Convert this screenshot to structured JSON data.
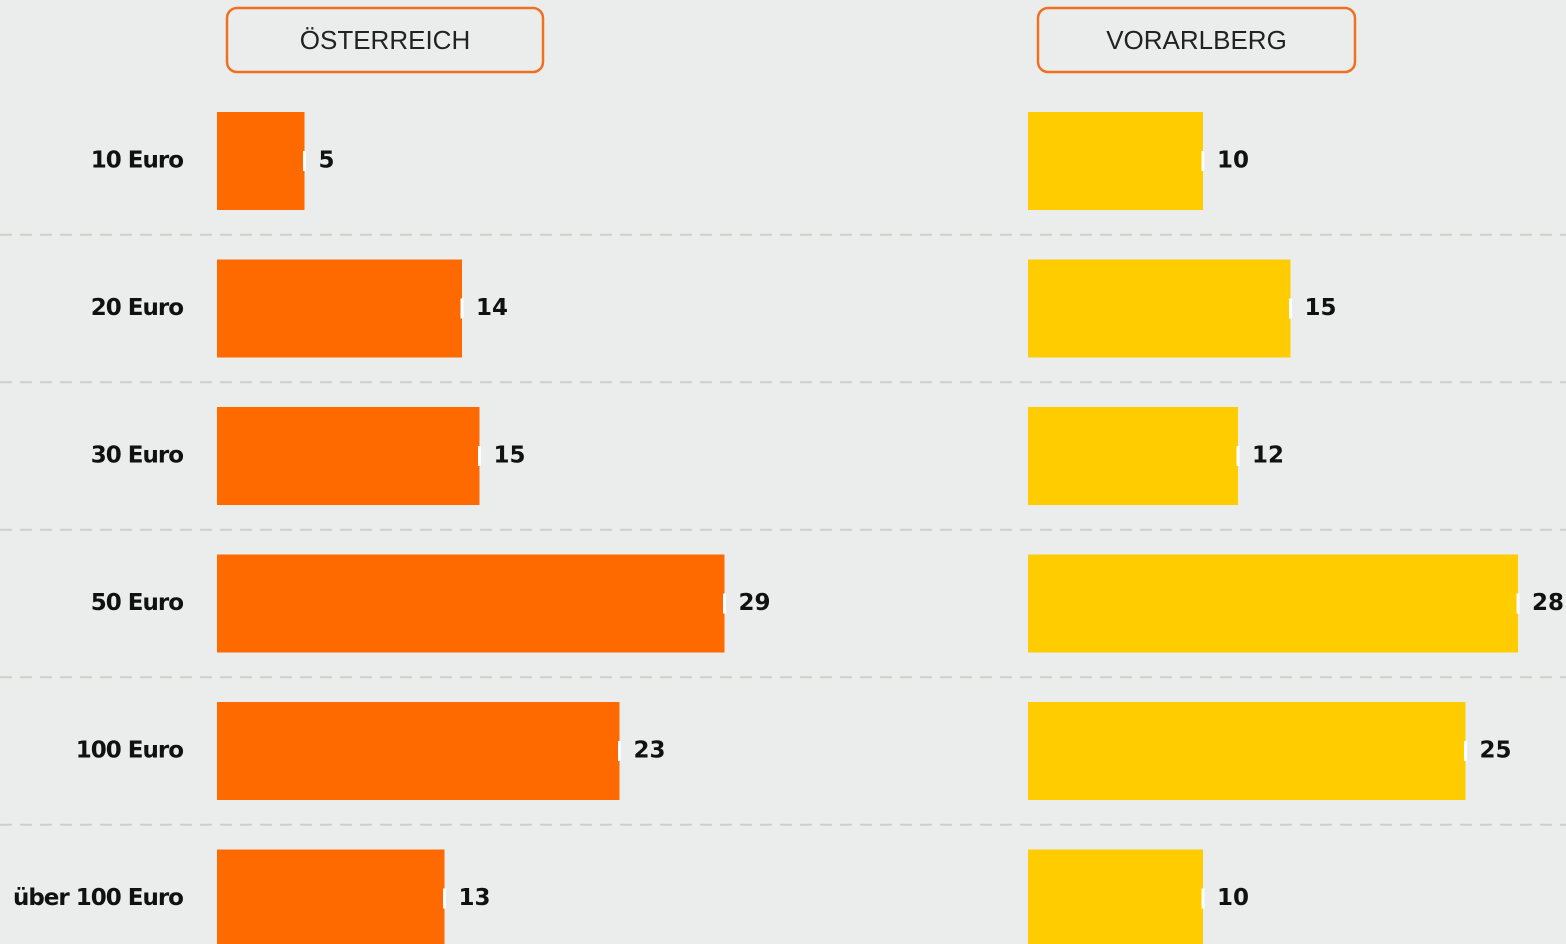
{
  "chart_data": {
    "type": "bar",
    "orientation": "horizontal",
    "categories": [
      "10 Euro",
      "20 Euro",
      "30 Euro",
      "50 Euro",
      "100 Euro",
      "über 100 Euro"
    ],
    "series": [
      {
        "name": "ÖSTERREICH",
        "color": "#ff6a00",
        "values": [
          5,
          14,
          15,
          29,
          23,
          13
        ]
      },
      {
        "name": "VORARLBERG",
        "color": "#ffcc00",
        "values": [
          10,
          15,
          12,
          28,
          25,
          10
        ]
      }
    ],
    "xlim": [
      0,
      30
    ]
  }
}
